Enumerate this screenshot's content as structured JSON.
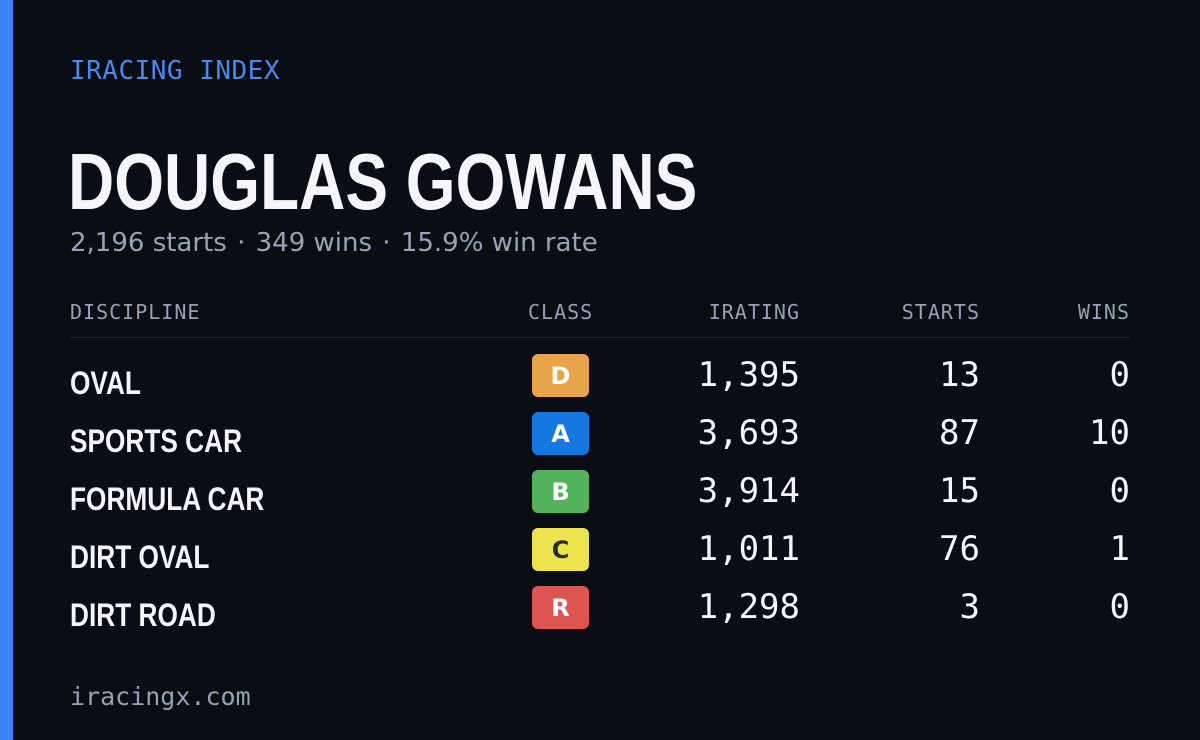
{
  "brand": "IRACING INDEX",
  "player": {
    "name": "DOUGLAS GOWANS",
    "summary": {
      "starts": "2,196 starts",
      "wins": "349 wins",
      "win_rate": "15.9% win rate",
      "separator": "·"
    }
  },
  "table": {
    "headers": {
      "discipline": "DISCIPLINE",
      "class": "CLASS",
      "irating": "IRATING",
      "starts": "STARTS",
      "wins": "WINS"
    },
    "rows": [
      {
        "discipline": "OVAL",
        "class": "D",
        "class_color": "#e8a44a",
        "class_text_color": "#ffffff",
        "irating": "1,395",
        "starts": "13",
        "wins": "0"
      },
      {
        "discipline": "SPORTS CAR",
        "class": "A",
        "class_color": "#1677e0",
        "class_text_color": "#ffffff",
        "irating": "3,693",
        "starts": "87",
        "wins": "10"
      },
      {
        "discipline": "FORMULA CAR",
        "class": "B",
        "class_color": "#52b35c",
        "class_text_color": "#ffffff",
        "irating": "3,914",
        "starts": "15",
        "wins": "0"
      },
      {
        "discipline": "DIRT OVAL",
        "class": "C",
        "class_color": "#ece44e",
        "class_text_color": "#2a2a2a",
        "irating": "1,011",
        "starts": "76",
        "wins": "1"
      },
      {
        "discipline": "DIRT ROAD",
        "class": "R",
        "class_color": "#dc5551",
        "class_text_color": "#ffffff",
        "irating": "1,298",
        "starts": "3",
        "wins": "0"
      }
    ]
  },
  "footer": "iracingx.com",
  "colors": {
    "background": "#0a0d14",
    "accent": "#3b82f6",
    "brand_text": "#4a88ea",
    "muted_text": "#9aa3b4",
    "primary_text": "#f4f6fb"
  }
}
